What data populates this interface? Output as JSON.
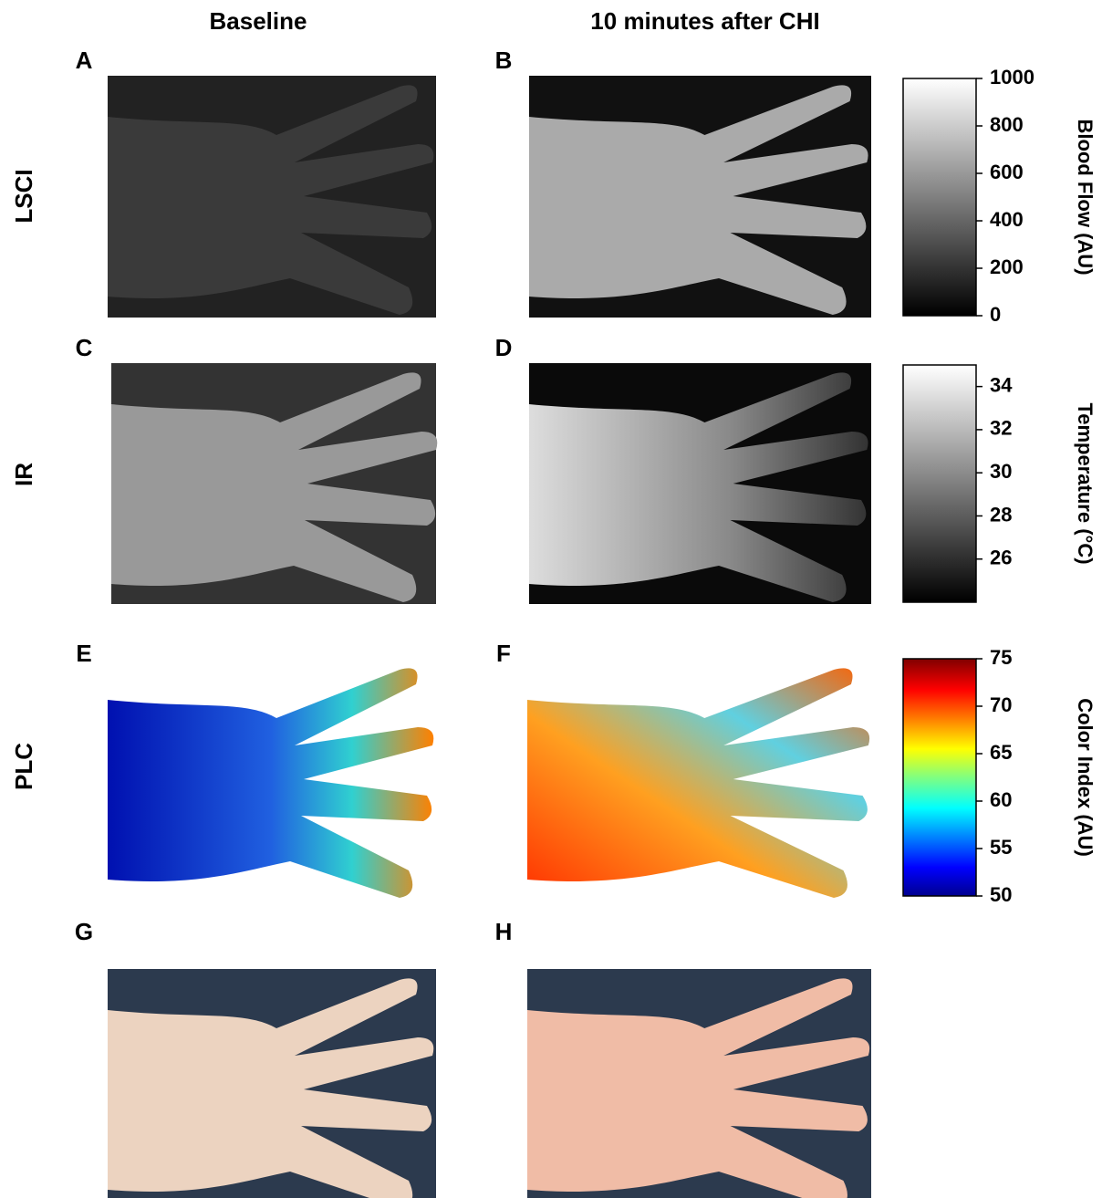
{
  "columns": [
    "Baseline",
    "10 minutes after CHI"
  ],
  "rows": [
    "LSCI",
    "IR",
    "PLC"
  ],
  "panels": [
    "A",
    "B",
    "C",
    "D",
    "E",
    "F",
    "G",
    "H"
  ],
  "colorbars": [
    {
      "label": "Blood Flow (AU)",
      "lim": [
        0,
        1000
      ],
      "ticks": [
        0,
        200,
        400,
        600,
        800,
        1000
      ],
      "colormap": "gray"
    },
    {
      "label": "Temperature (°C)",
      "lim": [
        24,
        35
      ],
      "ticks": [
        26,
        28,
        30,
        32,
        34
      ],
      "colormap": "gray"
    },
    {
      "label": "Color Index (AU)",
      "lim": [
        50,
        75
      ],
      "ticks": [
        50,
        55,
        60,
        65,
        70,
        75
      ],
      "colormap": "jet"
    }
  ]
}
